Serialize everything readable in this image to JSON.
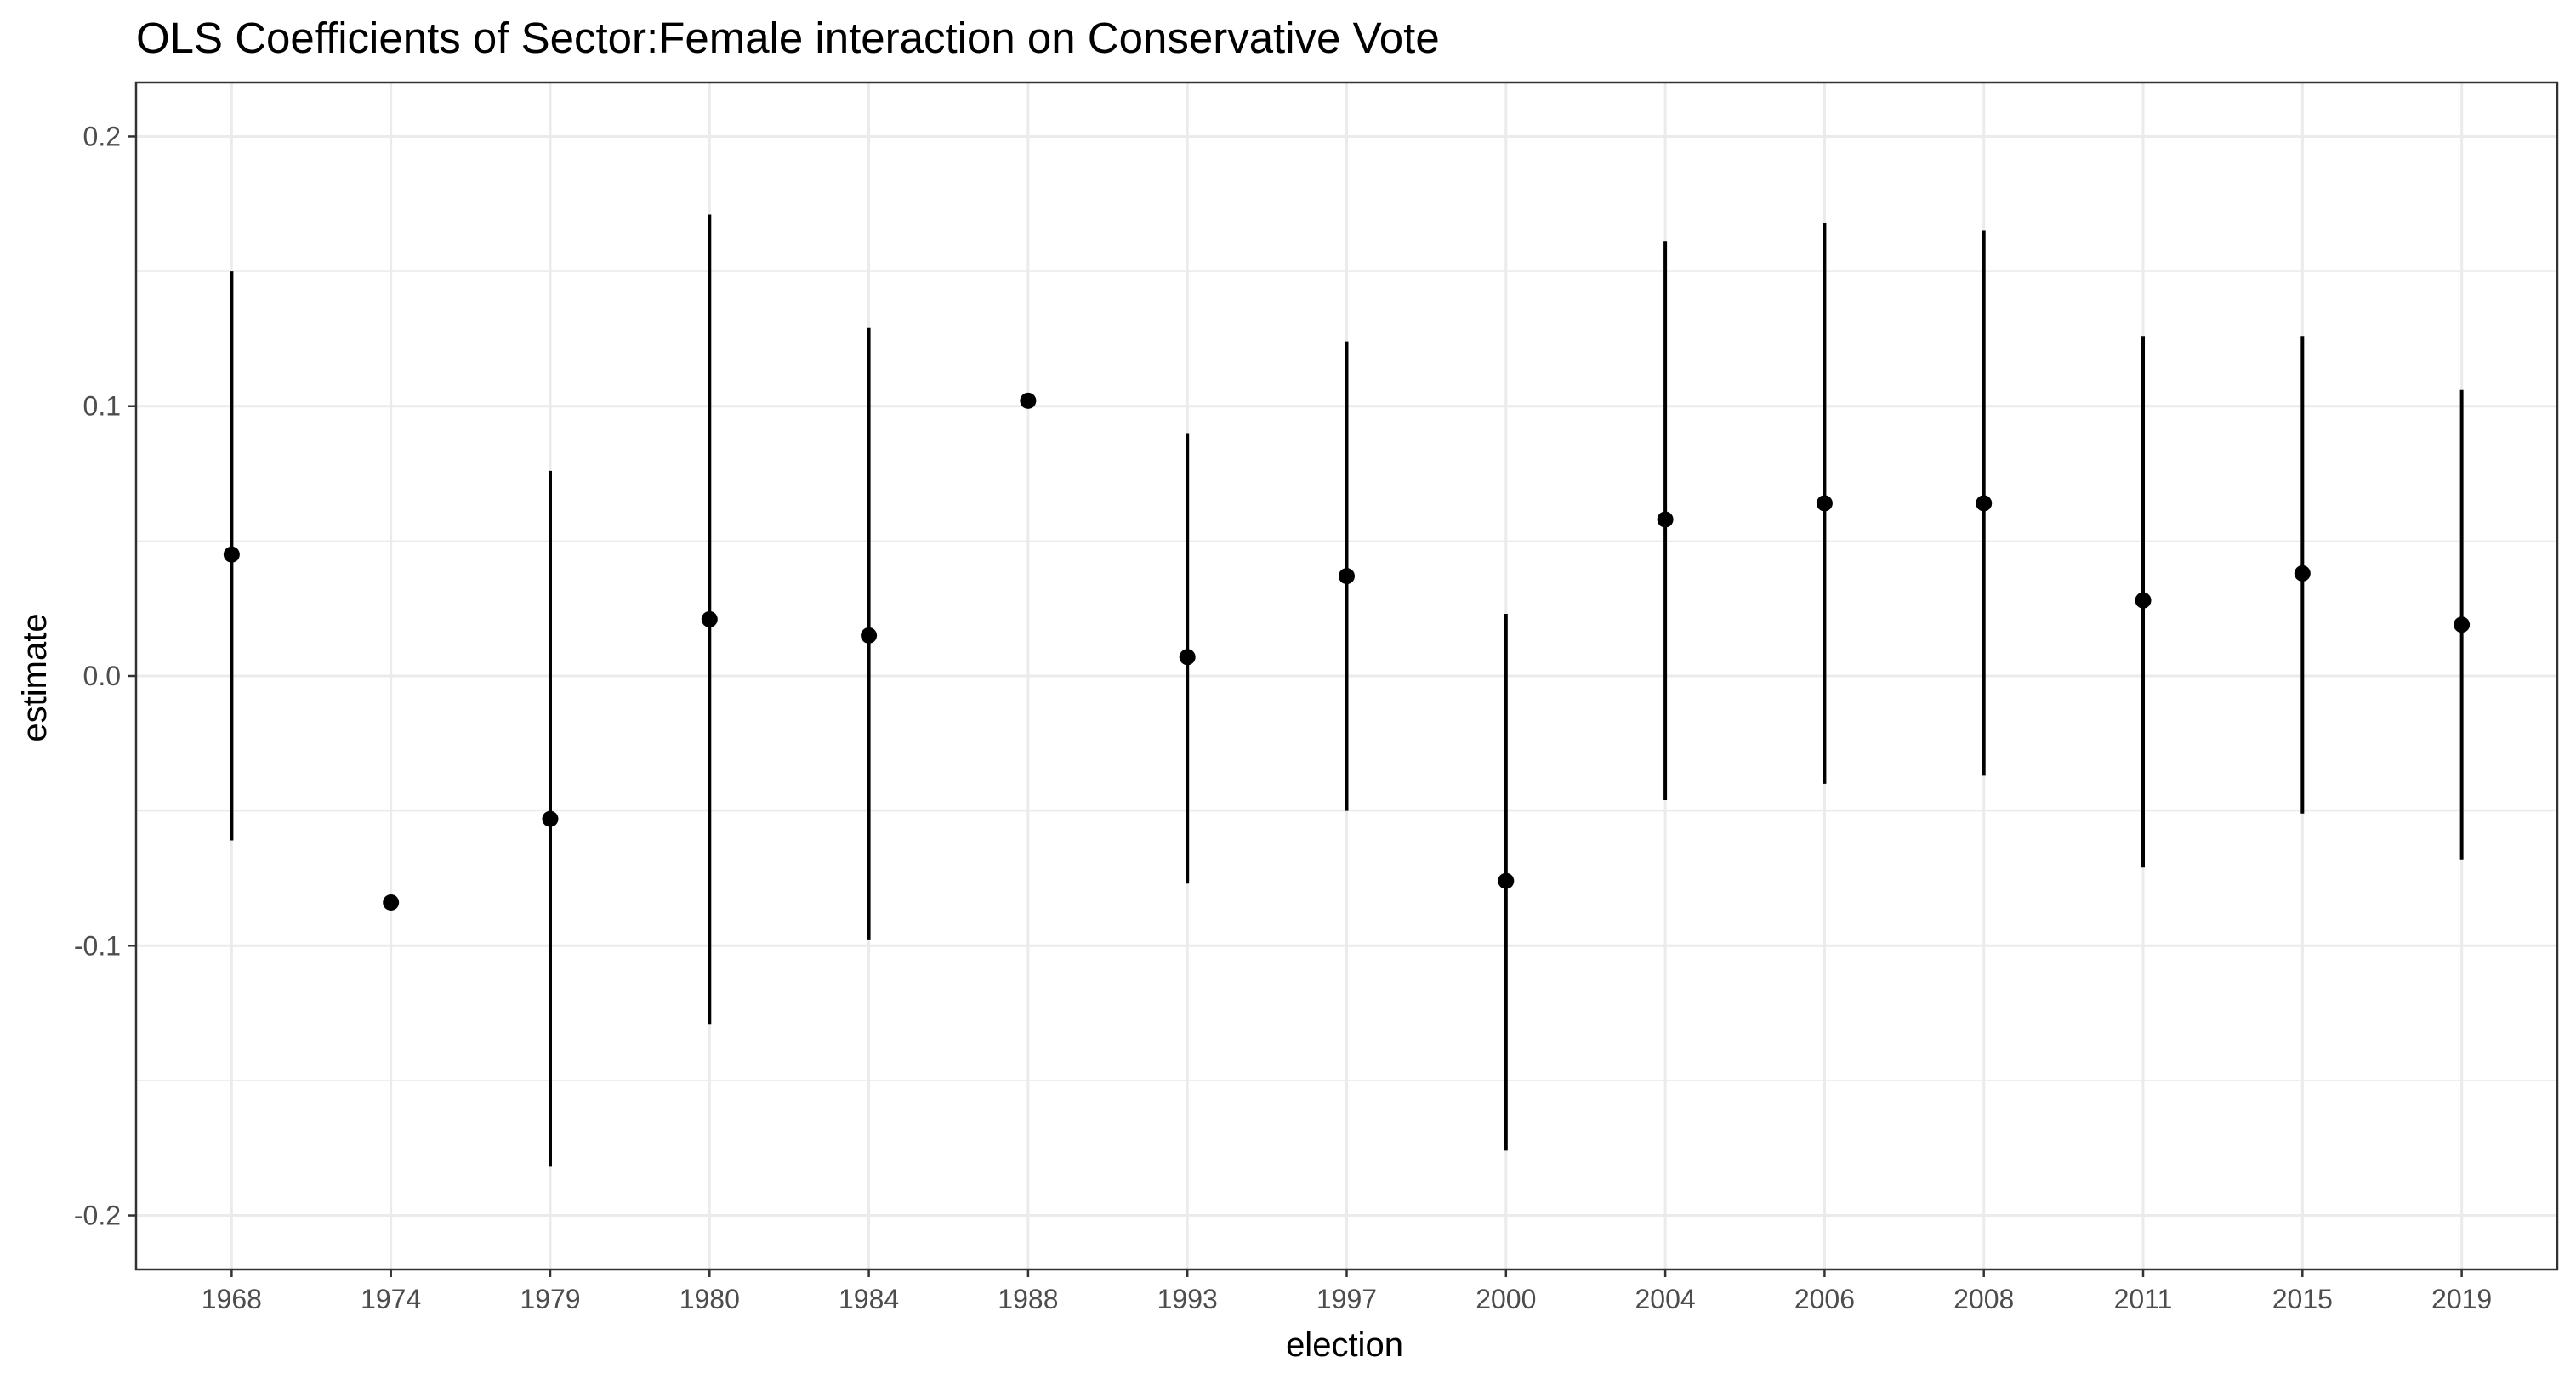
{
  "chart_data": {
    "type": "scatter",
    "title": "OLS Coefficients of Sector:Female interaction on Conservative Vote",
    "xlabel": "election",
    "ylabel": "estimate",
    "ylim": [
      -0.22,
      0.22
    ],
    "y_ticks": [
      -0.2,
      -0.1,
      0.0,
      0.1,
      0.2
    ],
    "y_tick_labels": [
      "-0.2",
      "-0.1",
      "0.0",
      "0.1",
      "0.2"
    ],
    "grid": true,
    "colors": {
      "point": "#000000",
      "grid": "#ebebeb",
      "panel_border": "#333333"
    },
    "categories": [
      "1968",
      "1974",
      "1979",
      "1980",
      "1984",
      "1988",
      "1993",
      "1997",
      "2000",
      "2004",
      "2006",
      "2008",
      "2011",
      "2015",
      "2019"
    ],
    "series": [
      {
        "estimate": [
          0.045,
          -0.084,
          -0.053,
          0.021,
          0.015,
          0.102,
          0.007,
          0.037,
          -0.076,
          0.058,
          0.064,
          0.064,
          0.028,
          0.038,
          0.019
        ],
        "lower": [
          -0.061,
          null,
          -0.182,
          -0.129,
          -0.098,
          null,
          -0.077,
          -0.05,
          -0.176,
          -0.046,
          -0.04,
          -0.037,
          -0.071,
          -0.051,
          -0.068
        ],
        "upper": [
          0.15,
          null,
          0.076,
          0.171,
          0.129,
          null,
          0.09,
          0.124,
          0.023,
          0.161,
          0.168,
          0.165,
          0.126,
          0.126,
          0.106
        ]
      }
    ]
  }
}
